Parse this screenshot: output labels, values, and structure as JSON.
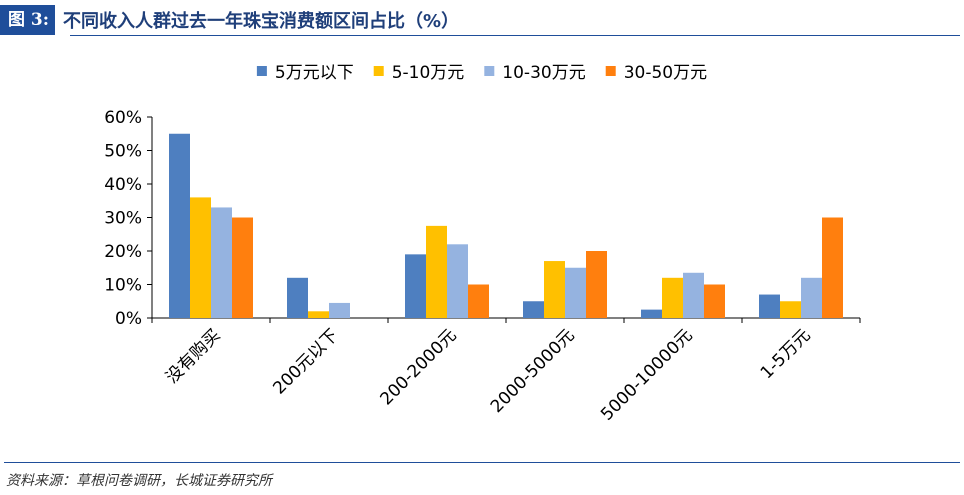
{
  "figure": {
    "label": "图 3:",
    "title": "不同收入人群过去一年珠宝消费额区间占比（%）"
  },
  "source": "资料来源：草根问卷调研，长城证券研究所",
  "chart_data": {
    "type": "bar",
    "categories": [
      "没有购买",
      "200元以下",
      "200-2000元",
      "2000-5000元",
      "5000-10000元",
      "1-5万元"
    ],
    "series": [
      {
        "name": "5万元以下",
        "color": "#4e7fc0",
        "values": [
          55,
          12,
          19,
          5,
          2.5,
          7
        ]
      },
      {
        "name": "5-10万元",
        "color": "#ffc000",
        "values": [
          36,
          2,
          27.5,
          17,
          12,
          5
        ]
      },
      {
        "name": "10-30万元",
        "color": "#95b3e0",
        "values": [
          33,
          4.5,
          22,
          15,
          13.5,
          12
        ]
      },
      {
        "name": "30-50万元",
        "color": "#ff7f0e",
        "values": [
          30,
          0,
          10,
          20,
          10,
          30
        ]
      }
    ],
    "ylim": [
      0,
      60
    ],
    "yticks": [
      "0%",
      "10%",
      "20%",
      "30%",
      "40%",
      "50%",
      "60%"
    ],
    "ytick_values": [
      0,
      10,
      20,
      30,
      40,
      50,
      60
    ],
    "legend_position": "top",
    "grid": false
  }
}
